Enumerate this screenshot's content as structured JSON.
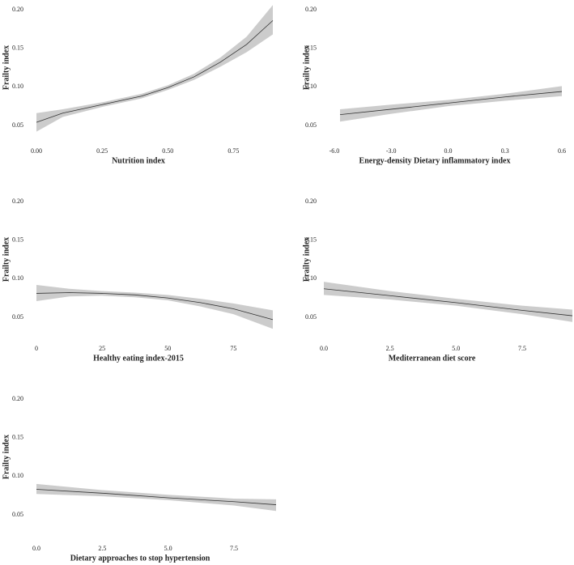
{
  "chart_data": [
    {
      "type": "line",
      "x_label": "Nutrition index",
      "y_label": "Frailty index",
      "x": [
        0,
        0.1,
        0.25,
        0.4,
        0.5,
        0.6,
        0.7,
        0.8,
        0.9
      ],
      "series": [
        {
          "color": "#333333",
          "band_color": "#cccccc",
          "values": [
            0.054,
            0.066,
            0.077,
            0.088,
            0.099,
            0.113,
            0.132,
            0.155,
            0.186
          ],
          "lower": [
            0.042,
            0.061,
            0.074,
            0.085,
            0.096,
            0.109,
            0.126,
            0.145,
            0.168
          ],
          "upper": [
            0.066,
            0.071,
            0.08,
            0.091,
            0.102,
            0.117,
            0.138,
            0.165,
            0.206
          ]
        }
      ],
      "xlim": [
        0,
        0.9
      ],
      "xticks": [
        {
          "value": 0,
          "label": "0.00"
        },
        0.25,
        {
          "value": 0.5,
          "label": "0.50"
        },
        0.75
      ],
      "ylim": [
        0.04,
        0.21
      ],
      "yticks": [
        0.05,
        {
          "value": 0.1,
          "label": "0.10"
        },
        0.15,
        {
          "value": 0.2,
          "label": "0.20"
        }
      ]
    },
    {
      "type": "line",
      "x_label": "Energy-density Dietary inflammatory index",
      "y_label": "Frailty index",
      "x": [
        -5.7,
        -3,
        0,
        0.3,
        0.6
      ],
      "series": [
        {
          "color": "#333333",
          "band_color": "#cccccc",
          "values": [
            0.064,
            0.071,
            0.079,
            0.087,
            0.094
          ],
          "lower": [
            0.055,
            0.065,
            0.075,
            0.082,
            0.088
          ],
          "upper": [
            0.071,
            0.077,
            0.083,
            0.091,
            0.101
          ]
        }
      ],
      "xlim": [
        -5.7,
        0.6
      ],
      "xticks": [
        {
          "value": -6,
          "label": "-6.0"
        },
        {
          "value": -3,
          "label": "-3.0"
        },
        {
          "value": 0,
          "label": "0.0"
        },
        0.3,
        0.6
      ],
      "ylim": [
        0.04,
        0.21
      ],
      "yticks": [
        0.05,
        {
          "value": 0.1,
          "label": "0.10"
        },
        0.15,
        {
          "value": 0.2,
          "label": "0.20"
        }
      ]
    },
    {
      "type": "line",
      "x_label": "Healthy eating index-2015",
      "y_label": "Frailty index",
      "x": [
        0,
        12.5,
        25,
        37.5,
        50,
        62.5,
        75,
        90
      ],
      "series": [
        {
          "color": "#333333",
          "band_color": "#cccccc",
          "values": [
            0.081,
            0.082,
            0.081,
            0.079,
            0.075,
            0.069,
            0.061,
            0.047
          ],
          "lower": [
            0.071,
            0.077,
            0.078,
            0.076,
            0.072,
            0.064,
            0.054,
            0.035
          ],
          "upper": [
            0.092,
            0.087,
            0.084,
            0.082,
            0.079,
            0.074,
            0.068,
            0.059
          ]
        }
      ],
      "xlim": [
        0,
        90
      ],
      "xticks": [
        0,
        25,
        50,
        75
      ],
      "ylim": [
        0.04,
        0.21
      ],
      "yticks": [
        0.05,
        {
          "value": 0.1,
          "label": "0.10"
        },
        0.15,
        {
          "value": 0.2,
          "label": "0.20"
        }
      ]
    },
    {
      "type": "line",
      "x_label": "Mediterranean diet score",
      "y_label": "Frailty index",
      "x": [
        0,
        2.5,
        5,
        7.5,
        9.4
      ],
      "series": [
        {
          "color": "#333333",
          "band_color": "#cccccc",
          "values": [
            0.087,
            0.078,
            0.069,
            0.059,
            0.052
          ],
          "lower": [
            0.079,
            0.073,
            0.065,
            0.054,
            0.044
          ],
          "upper": [
            0.096,
            0.084,
            0.074,
            0.065,
            0.06
          ]
        }
      ],
      "xlim": [
        0,
        9.4
      ],
      "xticks": [
        {
          "value": 0,
          "label": "0.0"
        },
        2.5,
        {
          "value": 5,
          "label": "5.0"
        },
        7.5
      ],
      "ylim": [
        0.04,
        0.21
      ],
      "yticks": [
        0.05,
        {
          "value": 0.1,
          "label": "0.10"
        },
        0.15,
        {
          "value": 0.2,
          "label": "0.20"
        }
      ]
    },
    {
      "type": "line",
      "x_label": "Dietary approaches to stop hypertension",
      "y_label": "Frailty index",
      "x": [
        0,
        2.5,
        5,
        7.5,
        9.1
      ],
      "series": [
        {
          "color": "#333333",
          "band_color": "#cccccc",
          "values": [
            0.083,
            0.078,
            0.072,
            0.067,
            0.063
          ],
          "lower": [
            0.077,
            0.074,
            0.069,
            0.062,
            0.055
          ],
          "upper": [
            0.09,
            0.082,
            0.076,
            0.071,
            0.07
          ]
        }
      ],
      "xlim": [
        0,
        9.1
      ],
      "xticks": [
        {
          "value": 0,
          "label": "0.0"
        },
        2.5,
        {
          "value": 5,
          "label": "5.0"
        },
        7.5
      ],
      "ylim": [
        0.04,
        0.21
      ],
      "yticks": [
        0.05,
        {
          "value": 0.1,
          "label": "0.10"
        },
        0.15,
        {
          "value": 0.2,
          "label": "0.20"
        }
      ]
    }
  ]
}
